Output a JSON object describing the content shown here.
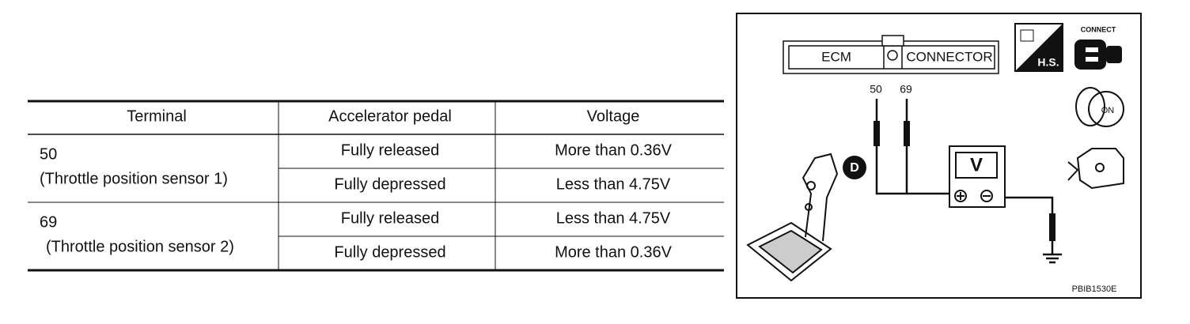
{
  "table": {
    "header": [
      "Terminal",
      "Accelerator pedal",
      "Voltage"
    ],
    "groups": [
      {
        "terminal": [
          "50",
          "(Throttle position sensor 1)"
        ],
        "rows": [
          [
            "Fully released",
            "More than 0.36V"
          ],
          [
            "Fully depressed",
            "Less than 4.75V"
          ]
        ]
      },
      {
        "terminal": [
          "69",
          "(Throttle position sensor 2)"
        ],
        "rows": [
          [
            "Fully released",
            "Less than 4.75V"
          ],
          [
            "Fully depressed",
            "More than 0.36V"
          ]
        ]
      }
    ]
  },
  "diagram": {
    "connector": [
      "ECM",
      "CONNECTOR"
    ],
    "pins": [
      "50",
      "69"
    ],
    "meter": "V",
    "position": "D",
    "hs": "H.S.",
    "connect": "CONNECT",
    "ignition": "ON",
    "code": "PBIB1530E"
  }
}
